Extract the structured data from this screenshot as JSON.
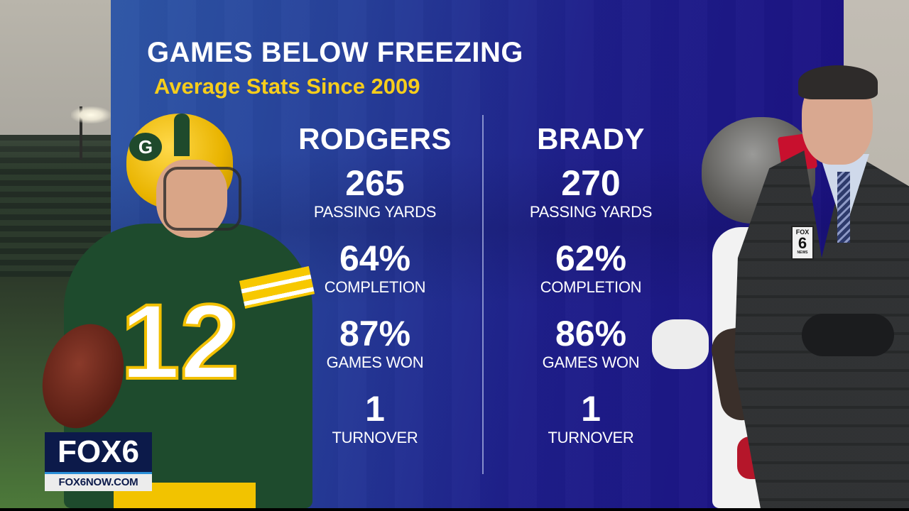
{
  "graphic": {
    "title": "GAMES BELOW FREEZING",
    "subtitle": "Average Stats Since 2009",
    "colors": {
      "panel_left": "#2e56a6",
      "panel_right": "#1b0f82",
      "subtitle": "#f6cd1c",
      "text": "#ffffff"
    }
  },
  "players": [
    {
      "name": "RODGERS",
      "jersey_number": "12",
      "stats": [
        {
          "value": "265",
          "label": "PASSING YARDS"
        },
        {
          "value": "64%",
          "label": "COMPLETION"
        },
        {
          "value": "87%",
          "label": "GAMES WON"
        },
        {
          "value": "1",
          "label": "TURNOVER"
        }
      ]
    },
    {
      "name": "BRADY",
      "stats": [
        {
          "value": "270",
          "label": "PASSING YARDS"
        },
        {
          "value": "62%",
          "label": "COMPLETION"
        },
        {
          "value": "86%",
          "label": "GAMES WON"
        },
        {
          "value": "1",
          "label": "TURNOVER"
        }
      ]
    }
  ],
  "station_bug": {
    "logo": "FOX6",
    "url": "FOX6NOW.COM"
  },
  "reporter": {
    "lapel_pin": {
      "line1": "FOX",
      "line2": "6",
      "line3": "NEWS"
    }
  },
  "helmet_logo": "G"
}
